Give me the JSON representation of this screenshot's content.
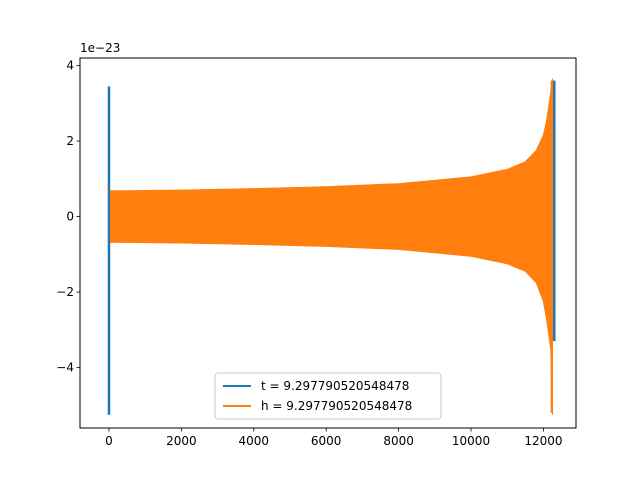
{
  "chart_data": {
    "type": "line",
    "title": "",
    "xlabel": "",
    "ylabel": "",
    "offset_text": "1e−23",
    "xlim": [
      -800,
      12900
    ],
    "ylim": [
      -5.6,
      4.2
    ],
    "xticks": [
      0,
      2000,
      4000,
      6000,
      8000,
      10000,
      12000
    ],
    "xtick_labels": [
      "0",
      "2000",
      "4000",
      "6000",
      "8000",
      "10000",
      "12000"
    ],
    "yticks": [
      -4,
      -2,
      0,
      2,
      4
    ],
    "ytick_labels": [
      "−4",
      "−2",
      "0",
      "2",
      "4"
    ],
    "grid": false,
    "legend_position": "lower center",
    "series": [
      {
        "name": "t = 9.297790520548478",
        "color": "#1f77b4",
        "description": "short burst near x=0 and near x=12300",
        "spikes": [
          {
            "x": 0,
            "ymin": -5.25,
            "ymax": 3.45
          },
          {
            "x": 12300,
            "ymin": -3.3,
            "ymax": 3.6
          }
        ]
      },
      {
        "name": "h = 9.297790520548478",
        "color": "#ff7f0e",
        "description": "chirp-like oscillation envelope from x=0 to x~12300",
        "envelope": {
          "x": [
            0,
            1000,
            2000,
            4000,
            6000,
            8000,
            10000,
            11000,
            11500,
            11800,
            12000,
            12100,
            12200,
            12250
          ],
          "upper": [
            0.68,
            0.69,
            0.7,
            0.74,
            0.79,
            0.87,
            1.05,
            1.25,
            1.45,
            1.75,
            2.15,
            2.6,
            3.3,
            3.65
          ],
          "lower": [
            -0.68,
            -0.69,
            -0.7,
            -0.74,
            -0.79,
            -0.87,
            -1.05,
            -1.25,
            -1.45,
            -1.75,
            -2.25,
            -2.8,
            -3.5,
            -5.25
          ]
        }
      }
    ]
  }
}
